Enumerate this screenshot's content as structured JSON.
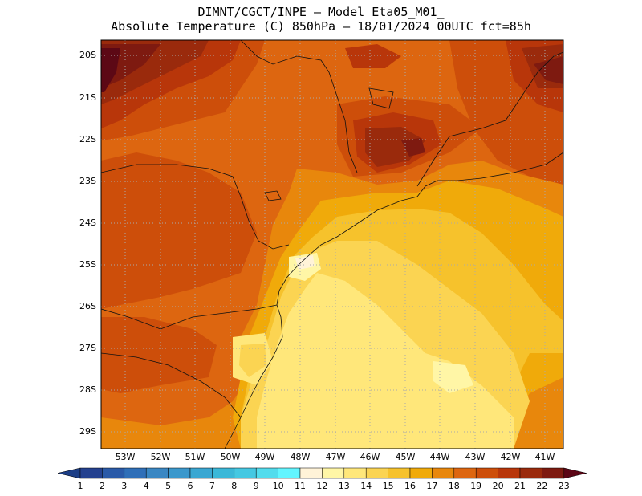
{
  "title": {
    "line1": "DIMNT/CGCT/INPE –  Model Eta05_M01_",
    "line2": "Absolute Temperature (C) 850hPa –  18/01/2024 00UTC fct=85h"
  },
  "axes": {
    "lat_labels": [
      "20S",
      "21S",
      "22S",
      "23S",
      "24S",
      "25S",
      "26S",
      "27S",
      "28S",
      "29S"
    ],
    "lon_labels": [
      "53W",
      "52W",
      "51W",
      "50W",
      "49W",
      "48W",
      "47W",
      "46W",
      "45W",
      "44W",
      "43W",
      "42W",
      "41W"
    ]
  },
  "colorbar": {
    "labels": [
      "1",
      "2",
      "3",
      "4",
      "5",
      "6",
      "7",
      "8",
      "9",
      "10",
      "11",
      "12",
      "13",
      "14",
      "15",
      "16",
      "17",
      "18",
      "19",
      "20",
      "21",
      "22",
      "23"
    ],
    "colors": [
      "#24418f",
      "#2a5aa8",
      "#2f6fb8",
      "#3a87c3",
      "#3b98cc",
      "#3aa7d2",
      "#3bb8d8",
      "#45c8e2",
      "#52dced",
      "#62f5ff",
      "#fff3d8",
      "#fff6a6",
      "#ffe77a",
      "#fbd452",
      "#f6c22c",
      "#f0aa0a",
      "#e8870c",
      "#dd6610",
      "#cd4e0a",
      "#b8360a",
      "#9a2a0c",
      "#7e1a10",
      "#5c0815"
    ],
    "end_colors": [
      "#1c3e87",
      "#5b0515"
    ]
  },
  "field_colors": {
    "c12": "#fff6a6",
    "c13": "#ffe77a",
    "c14": "#fbd452",
    "c15": "#f6c22c",
    "c16": "#f0aa0a",
    "c17": "#e8870c",
    "c18": "#dd6610",
    "c19": "#cd4e0a",
    "c20": "#b8360a",
    "c21": "#9a2a0c",
    "c22": "#7e1a10",
    "c23": "#5c0815",
    "c9": "#52dced",
    "c10": "#62f5ff",
    "c11": "#fff3d8"
  }
}
